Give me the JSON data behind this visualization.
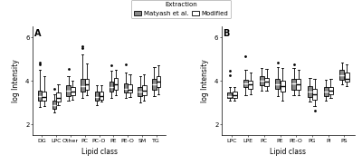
{
  "panel_A": {
    "categories": [
      "DG",
      "LPC",
      "Other",
      "PC",
      "PC-O",
      "PE",
      "PE-O",
      "SM",
      "TG"
    ],
    "matyash": {
      "DG": {
        "whislo": 2.8,
        "q1": 3.1,
        "med": 3.3,
        "q3": 3.55,
        "whishi": 4.5,
        "fliers": [
          4.75,
          4.85
        ]
      },
      "LPC": {
        "whislo": 2.55,
        "q1": 2.72,
        "med": 2.9,
        "q3": 3.08,
        "whishi": 3.4,
        "fliers": [
          3.65
        ]
      },
      "Other": {
        "whislo": 3.1,
        "q1": 3.3,
        "med": 3.55,
        "q3": 3.8,
        "whishi": 4.2,
        "fliers": [
          4.55
        ]
      },
      "PC": {
        "whislo": 3.2,
        "q1": 3.5,
        "med": 3.75,
        "q3": 4.1,
        "whishi": 5.2,
        "fliers": [
          5.5,
          5.6
        ]
      },
      "PC-O": {
        "whislo": 2.9,
        "q1": 3.1,
        "med": 3.25,
        "q3": 3.5,
        "whishi": 3.8,
        "fliers": []
      },
      "PE": {
        "whislo": 3.2,
        "q1": 3.5,
        "med": 3.7,
        "q3": 3.95,
        "whishi": 4.45,
        "fliers": [
          4.7
        ]
      },
      "PE-O": {
        "whislo": 3.2,
        "q1": 3.45,
        "med": 3.65,
        "q3": 3.9,
        "whishi": 4.4,
        "fliers": [
          4.75
        ]
      },
      "SM": {
        "whislo": 3.0,
        "q1": 3.3,
        "med": 3.5,
        "q3": 3.7,
        "whishi": 4.2,
        "fliers": []
      },
      "TG": {
        "whislo": 3.3,
        "q1": 3.6,
        "med": 3.85,
        "q3": 4.1,
        "whishi": 4.65,
        "fliers": []
      }
    },
    "modified": {
      "DG": {
        "whislo": 2.85,
        "q1": 3.1,
        "med": 3.25,
        "q3": 3.5,
        "whishi": 4.2,
        "fliers": []
      },
      "LPC": {
        "whislo": 2.9,
        "q1": 3.05,
        "med": 3.2,
        "q3": 3.45,
        "whishi": 3.85,
        "fliers": []
      },
      "Other": {
        "whislo": 3.15,
        "q1": 3.35,
        "med": 3.5,
        "q3": 3.7,
        "whishi": 4.0,
        "fliers": []
      },
      "PC": {
        "whislo": 3.35,
        "q1": 3.6,
        "med": 3.85,
        "q3": 4.1,
        "whishi": 4.8,
        "fliers": []
      },
      "PC-O": {
        "whislo": 3.05,
        "q1": 3.15,
        "med": 3.3,
        "q3": 3.5,
        "whishi": 3.8,
        "fliers": []
      },
      "PE": {
        "whislo": 3.35,
        "q1": 3.6,
        "med": 3.85,
        "q3": 4.15,
        "whishi": 4.5,
        "fliers": []
      },
      "PE-O": {
        "whislo": 3.25,
        "q1": 3.45,
        "med": 3.6,
        "q3": 3.85,
        "whishi": 4.3,
        "fliers": []
      },
      "SM": {
        "whislo": 3.1,
        "q1": 3.35,
        "med": 3.55,
        "q3": 3.8,
        "whishi": 4.3,
        "fliers": []
      },
      "TG": {
        "whislo": 3.4,
        "q1": 3.7,
        "med": 3.95,
        "q3": 4.2,
        "whishi": 4.7,
        "fliers": []
      }
    },
    "ylim": [
      1.5,
      6.5
    ],
    "yticks": [
      2,
      4,
      6
    ]
  },
  "panel_B": {
    "categories": [
      "LPC",
      "LPE",
      "PC",
      "PE",
      "PE-O",
      "PG",
      "PI",
      "PS"
    ],
    "matyash": {
      "LPC": {
        "whislo": 3.1,
        "q1": 3.2,
        "med": 3.3,
        "q3": 3.48,
        "whishi": 3.7,
        "fliers": [
          4.25,
          4.45
        ]
      },
      "LPE": {
        "whislo": 3.35,
        "q1": 3.7,
        "med": 3.9,
        "q3": 4.05,
        "whishi": 4.5,
        "fliers": [
          5.15
        ]
      },
      "PC": {
        "whislo": 3.55,
        "q1": 3.8,
        "med": 4.0,
        "q3": 4.2,
        "whishi": 4.6,
        "fliers": []
      },
      "PE": {
        "whislo": 3.3,
        "q1": 3.65,
        "med": 3.85,
        "q3": 4.1,
        "whishi": 4.65,
        "fliers": [
          4.85
        ]
      },
      "PE-O": {
        "whislo": 3.35,
        "q1": 3.6,
        "med": 3.9,
        "q3": 4.1,
        "whishi": 4.6,
        "fliers": [
          4.75
        ]
      },
      "PG": {
        "whislo": 3.05,
        "q1": 3.25,
        "med": 3.5,
        "q3": 3.75,
        "whishi": 4.15,
        "fliers": []
      },
      "PI": {
        "whislo": 3.1,
        "q1": 3.3,
        "med": 3.5,
        "q3": 3.7,
        "whishi": 4.05,
        "fliers": []
      },
      "PS": {
        "whislo": 3.85,
        "q1": 4.05,
        "med": 4.25,
        "q3": 4.5,
        "whishi": 4.85,
        "fliers": []
      }
    },
    "modified": {
      "LPC": {
        "whislo": 3.1,
        "q1": 3.2,
        "med": 3.35,
        "q3": 3.5,
        "whishi": 3.7,
        "fliers": []
      },
      "LPE": {
        "whislo": 3.4,
        "q1": 3.65,
        "med": 3.85,
        "q3": 4.0,
        "whishi": 4.4,
        "fliers": []
      },
      "PC": {
        "whislo": 3.55,
        "q1": 3.75,
        "med": 3.95,
        "q3": 4.15,
        "whishi": 4.55,
        "fliers": []
      },
      "PE": {
        "whislo": 3.1,
        "q1": 3.5,
        "med": 3.75,
        "q3": 4.0,
        "whishi": 4.6,
        "fliers": []
      },
      "PE-O": {
        "whislo": 3.35,
        "q1": 3.6,
        "med": 3.85,
        "q3": 4.1,
        "whishi": 4.5,
        "fliers": []
      },
      "PG": {
        "whislo": 2.85,
        "q1": 3.15,
        "med": 3.4,
        "q3": 3.65,
        "whishi": 4.1,
        "fliers": [
          2.65
        ]
      },
      "PI": {
        "whislo": 3.2,
        "q1": 3.4,
        "med": 3.55,
        "q3": 3.7,
        "whishi": 4.1,
        "fliers": []
      },
      "PS": {
        "whislo": 3.75,
        "q1": 3.95,
        "med": 4.1,
        "q3": 4.4,
        "whishi": 4.75,
        "fliers": []
      }
    },
    "ylim": [
      1.5,
      6.5
    ],
    "yticks": [
      2,
      4,
      6
    ]
  },
  "matyash_color": "#888888",
  "modified_color": "#ffffff",
  "box_width": 0.28,
  "linewidth": 0.6,
  "flier_size": 2.0,
  "bg_color": "#ffffff",
  "legend_title": "Extraction",
  "legend_labels": [
    "Matyash et al.",
    "Modified"
  ]
}
